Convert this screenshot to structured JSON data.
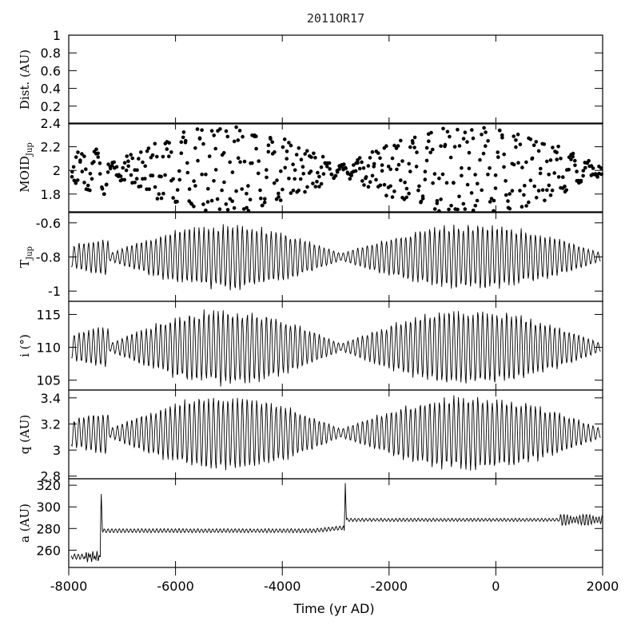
{
  "chart_data": {
    "type": "line",
    "title": "2011OR17",
    "xlabel": "Time (yr AD)",
    "x_ticks": [
      -8000,
      -6000,
      -4000,
      -2000,
      0,
      2000
    ],
    "x_tick_labels": [
      "-8000",
      "-6000",
      "-4000",
      "-2000",
      "0",
      "2000"
    ],
    "xlim": [
      -8000,
      2000
    ],
    "panels": [
      {
        "id": "dist",
        "ylabel": "Dist. (AU)",
        "ylim": [
          0,
          1
        ],
        "y_ticks": [
          0.2,
          0.4,
          0.6,
          0.8,
          1
        ],
        "y_tick_labels": [
          "0.2",
          "0.4",
          "0.6",
          "0.8",
          "1"
        ],
        "kind": "empty"
      },
      {
        "id": "moid",
        "ylabel": "MOID",
        "ylabel_sub": "Jup",
        "ylim": [
          1.65,
          2.4
        ],
        "y_ticks": [
          1.8,
          2,
          2.2,
          2.4
        ],
        "y_tick_labels": [
          "1.8",
          "2",
          "2.2",
          "2.4"
        ],
        "kind": "scatter",
        "center": 2.0,
        "envelope_half_width": 0.35,
        "node_years": [
          -7250,
          -2900,
          2000
        ]
      },
      {
        "id": "tjup",
        "ylabel": "T",
        "ylabel_sub": "Jup",
        "ylim": [
          -1.06,
          -0.54
        ],
        "y_ticks": [
          -1,
          -0.8,
          -0.6
        ],
        "y_tick_labels": [
          "-1",
          "-0.8",
          "-0.6"
        ],
        "kind": "oscillation",
        "center": -0.8,
        "max_amplitude": 0.2,
        "min_amplitude": 0.02,
        "node_years": [
          -7250,
          -2900,
          2000
        ]
      },
      {
        "id": "incl",
        "ylabel": "i (°)",
        "ylim": [
          103.5,
          117
        ],
        "y_ticks": [
          105,
          110,
          115
        ],
        "y_tick_labels": [
          "105",
          "110",
          "115"
        ],
        "kind": "oscillation",
        "center": 110,
        "max_amplitude": 6,
        "min_amplitude": 0.5,
        "node_years": [
          -7250,
          -2900,
          2000
        ]
      },
      {
        "id": "q",
        "ylabel": "q (AU)",
        "ylim": [
          2.78,
          3.46
        ],
        "y_ticks": [
          2.8,
          3,
          3.2,
          3.4
        ],
        "y_tick_labels": [
          "2.8",
          "3",
          "3.2",
          "3.4"
        ],
        "kind": "oscillation",
        "center": 3.13,
        "max_amplitude": 0.3,
        "min_amplitude": 0.03,
        "node_years": [
          -7250,
          -2900,
          2000
        ]
      },
      {
        "id": "a",
        "ylabel": "a (AU)",
        "ylim": [
          244,
          326
        ],
        "y_ticks": [
          260,
          280,
          300,
          320
        ],
        "y_tick_labels": [
          "260",
          "280",
          "300",
          "320"
        ],
        "kind": "semi_major_axis",
        "segments": [
          {
            "from": -8000,
            "to": -7400,
            "level": 254,
            "amplitude": 2
          },
          {
            "from": -7400,
            "to": -2820,
            "level": 278,
            "amplitude": 1.5
          },
          {
            "from": -2820,
            "to": 2000,
            "level": 288,
            "amplitude": 1.2
          }
        ],
        "spikes": [
          {
            "year": -7390,
            "value": 312
          },
          {
            "year": -2820,
            "value": 322
          }
        ]
      }
    ]
  }
}
